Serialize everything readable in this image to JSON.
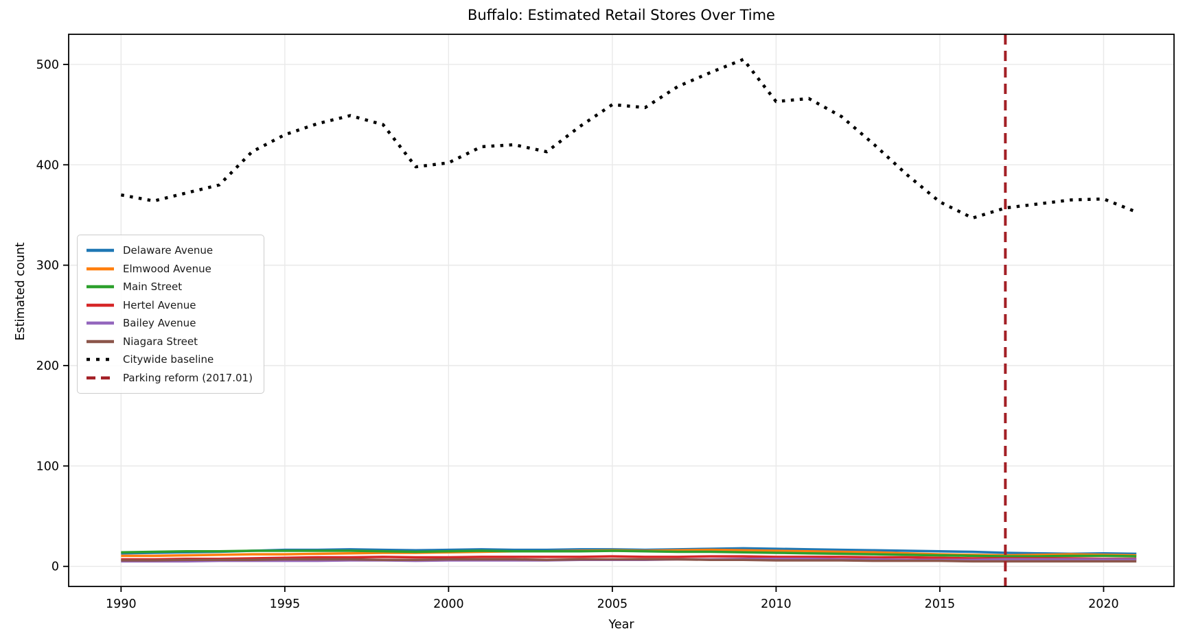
{
  "figure": {
    "title": "Buffalo: Estimated Retail Stores Over Time",
    "xlabel": "Year",
    "ylabel": "Estimated count"
  },
  "colors": {
    "background": "#ffffff",
    "grid": "#e9e9e9",
    "spine": "#000000",
    "tick_label": "#000000",
    "event_line": "#a32026"
  },
  "chart_data": {
    "type": "line",
    "title": "Buffalo: Estimated Retail Stores Over Time",
    "xlabel": "Year",
    "ylabel": "Estimated count",
    "xlim": [
      1988.4,
      2022.15
    ],
    "ylim": [
      -20,
      530
    ],
    "xticks": [
      1990,
      1995,
      2000,
      2005,
      2010,
      2015,
      2020
    ],
    "yticks": [
      0,
      100,
      200,
      300,
      400,
      500
    ],
    "grid": true,
    "legend_position": "center-left",
    "x": [
      1990,
      1991,
      1992,
      1993,
      1994,
      1995,
      1996,
      1997,
      1998,
      1999,
      2000,
      2001,
      2002,
      2003,
      2004,
      2005,
      2006,
      2007,
      2008,
      2009,
      2010,
      2011,
      2012,
      2013,
      2014,
      2015,
      2016,
      2017,
      2018,
      2019,
      2020,
      2021
    ],
    "series": [
      {
        "name": "Delaware Avenue",
        "color": "#1f77b4",
        "style": "solid",
        "width": 3.5,
        "values": [
          13,
          13.5,
          14,
          14.5,
          15.5,
          16.5,
          16.5,
          17,
          16.5,
          16,
          16.5,
          17,
          16.5,
          16.5,
          17,
          17,
          16.5,
          17,
          17.5,
          18,
          17.5,
          17,
          16.5,
          16,
          15.5,
          15,
          14.5,
          13.5,
          13,
          12.5,
          13,
          12.5
        ]
      },
      {
        "name": "Elmwood Avenue",
        "color": "#ff7f0e",
        "style": "solid",
        "width": 3.5,
        "values": [
          10.5,
          10.5,
          11,
          11.5,
          12,
          12,
          12.5,
          13,
          13.5,
          13.5,
          14,
          14.5,
          15,
          15,
          15.5,
          16,
          15.5,
          16,
          16.5,
          16,
          15.5,
          15,
          14.5,
          14,
          13,
          12,
          11.5,
          11,
          11.5,
          12,
          11.5,
          11
        ]
      },
      {
        "name": "Main Street",
        "color": "#2ca02c",
        "style": "solid",
        "width": 3.5,
        "values": [
          14,
          14.5,
          15,
          15,
          15.5,
          15.5,
          15.5,
          15.5,
          15,
          14.5,
          15,
          15.5,
          15,
          15,
          15,
          15.5,
          15,
          14.5,
          14.5,
          14,
          13.5,
          13,
          12.5,
          12,
          11.5,
          11,
          10.5,
          10,
          10,
          10.5,
          10.5,
          10
        ]
      },
      {
        "name": "Hertel Avenue",
        "color": "#d62728",
        "style": "solid",
        "width": 3.5,
        "values": [
          7,
          7,
          7.5,
          7.5,
          8,
          8.5,
          9,
          9,
          9.5,
          9,
          9,
          9.5,
          9.5,
          9.5,
          9.5,
          10,
          9.5,
          9.5,
          10,
          10,
          9.5,
          9.5,
          9.5,
          9,
          9,
          8.5,
          8,
          8,
          8,
          8,
          7.5,
          7.5
        ]
      },
      {
        "name": "Bailey Avenue",
        "color": "#9467bd",
        "style": "solid",
        "width": 3.5,
        "values": [
          5,
          5,
          5,
          5.5,
          5.5,
          5.5,
          5.5,
          6,
          6,
          5.5,
          6,
          6,
          6,
          6,
          6.5,
          6.5,
          6.5,
          7,
          7,
          7.5,
          7.5,
          7.5,
          7,
          7,
          6.5,
          6.5,
          6.5,
          7,
          7,
          7,
          7,
          7
        ]
      },
      {
        "name": "Niagara Street",
        "color": "#8c564b",
        "style": "solid",
        "width": 3.5,
        "values": [
          6,
          6,
          6.5,
          6.5,
          6.5,
          7,
          7,
          7,
          6.5,
          6.5,
          7,
          7,
          7,
          6.5,
          7,
          7,
          7,
          7,
          6.5,
          6.5,
          6,
          6,
          6,
          5.5,
          5.5,
          5.5,
          5,
          5,
          5,
          5,
          5,
          5
        ]
      },
      {
        "name": "Citywide baseline",
        "color": "#000000",
        "style": "dotted",
        "width": 4.5,
        "values": [
          370,
          364,
          372,
          380,
          413,
          430,
          441,
          449,
          440,
          398,
          402,
          418,
          420,
          413,
          438,
          460,
          457,
          478,
          492,
          505,
          463,
          466,
          448,
          420,
          390,
          363,
          347,
          357,
          361,
          365,
          366,
          353
        ]
      }
    ],
    "event_line": {
      "name": "Parking reform (2017.01)",
      "color": "#a32026",
      "style": "dashed",
      "width": 4,
      "x": 2017
    }
  }
}
